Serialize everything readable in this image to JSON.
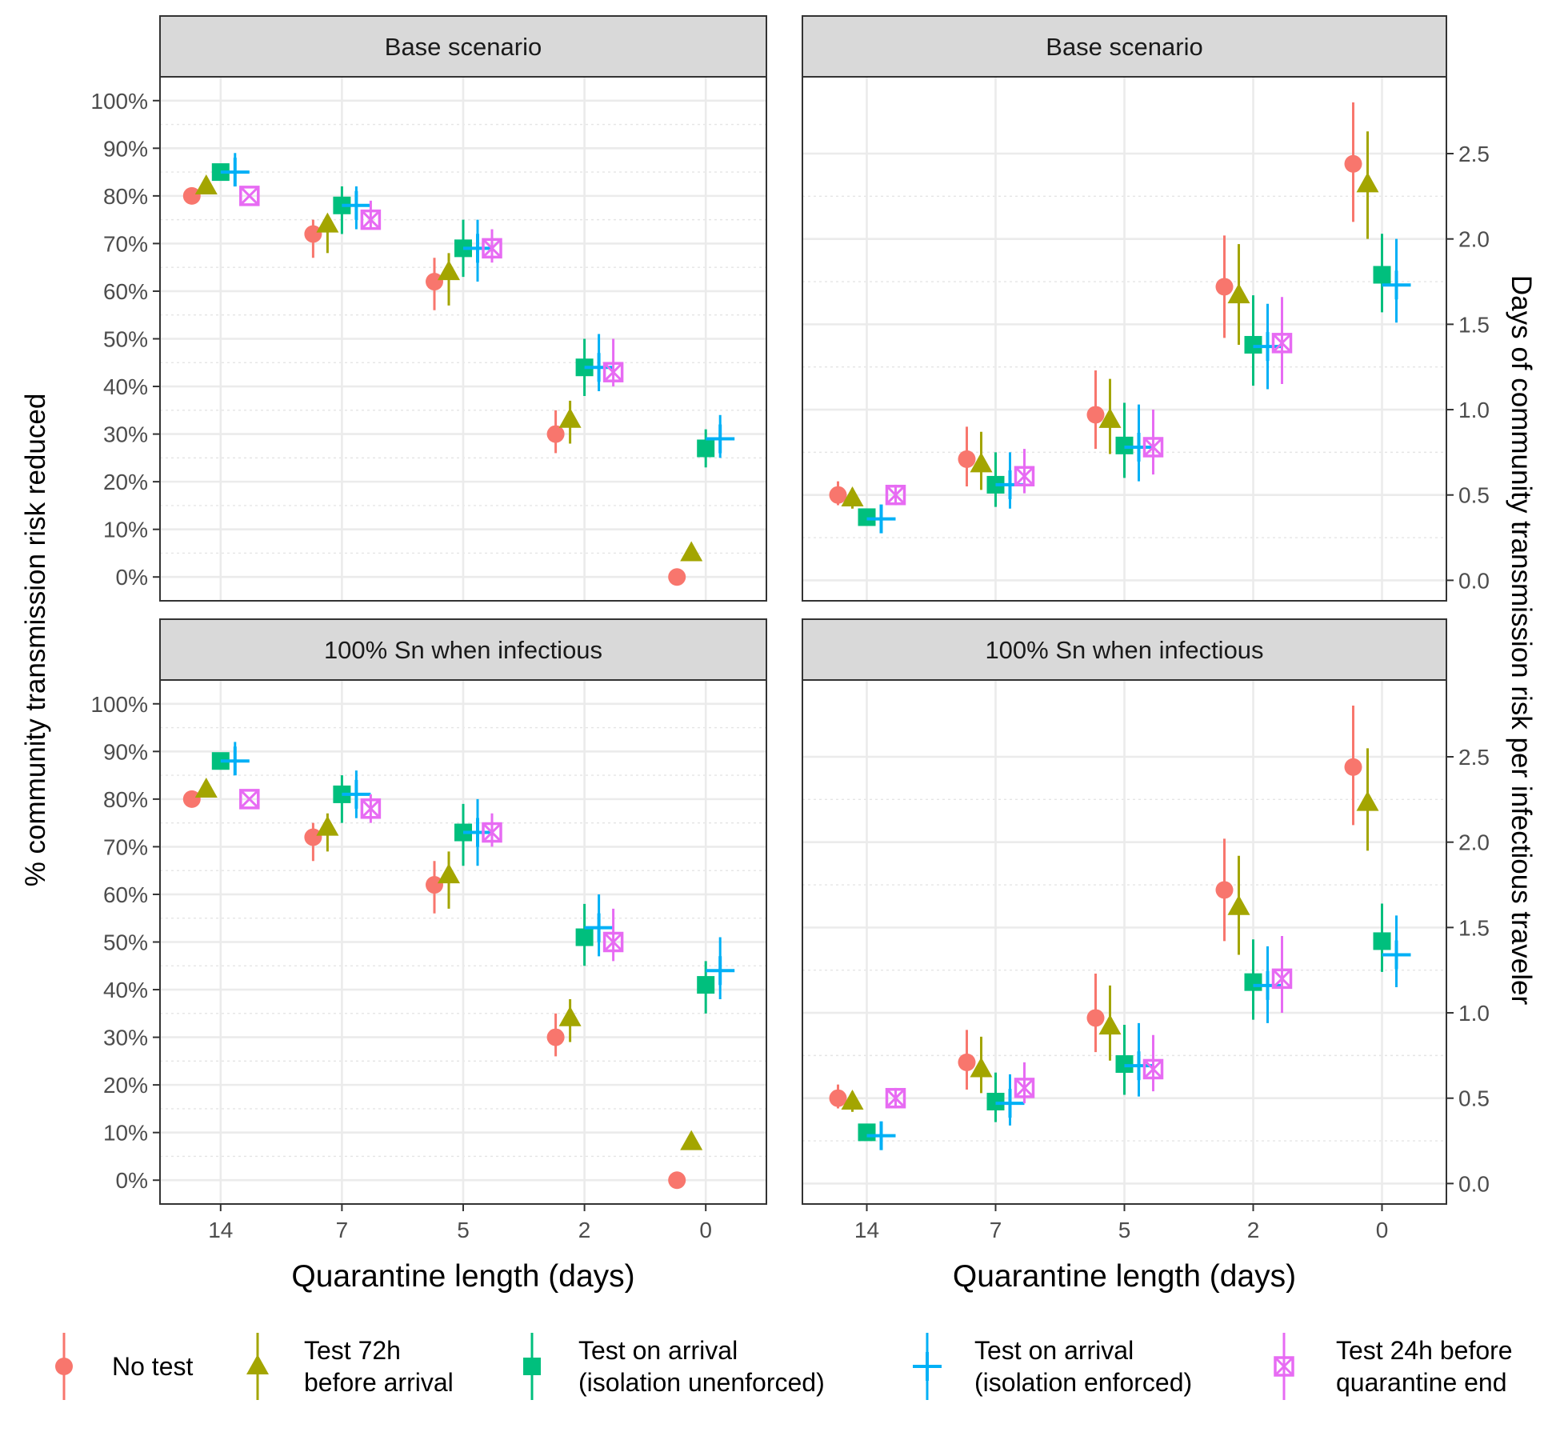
{
  "colors": {
    "no_test": "#F8766D",
    "test_72h": "#A3A500",
    "test_arrival_unenforced": "#00BF7D",
    "test_arrival_enforced": "#00B0F6",
    "test_24h_before_end": "#E76BF3"
  },
  "chart_data": {
    "type": "scatter",
    "x_categories": [
      "14",
      "7",
      "5",
      "2",
      "0"
    ],
    "xlabel": "Quarantine length (days)",
    "ylabel_left": "% community transmission risk reduced",
    "ylabel_right": "Days of community transmission risk per infectious traveler",
    "legend_position": "bottom",
    "legend": [
      {
        "key": "no_test",
        "label1": "No test",
        "label2": "",
        "shape": "circle"
      },
      {
        "key": "test_72h",
        "label1": "Test 72h",
        "label2": "before arrival",
        "shape": "triangle"
      },
      {
        "key": "test_arrival_unenforced",
        "label1": "Test on arrival",
        "label2": "(isolation unenforced)",
        "shape": "square"
      },
      {
        "key": "test_arrival_enforced",
        "label1": "Test on arrival",
        "label2": "(isolation enforced)",
        "shape": "plus"
      },
      {
        "key": "test_24h_before_end",
        "label1": "Test 24h before",
        "label2": "quarantine end",
        "shape": "squarex"
      }
    ],
    "panels": [
      {
        "id": "base-pct",
        "title": "Base scenario",
        "row": 0,
        "col": 0,
        "ylim": [
          -0.05,
          1.05
        ],
        "yticks": [
          0,
          0.1,
          0.2,
          0.3,
          0.4,
          0.5,
          0.6,
          0.7,
          0.8,
          0.9,
          1.0
        ],
        "ytick_labels": [
          "0%",
          "10%",
          "20%",
          "30%",
          "40%",
          "50%",
          "60%",
          "70%",
          "80%",
          "90%",
          "100%"
        ],
        "series": {
          "no_test": [
            [
              0.8,
              0.8,
              0.8
            ],
            [
              0.72,
              0.67,
              0.75
            ],
            [
              0.62,
              0.56,
              0.67
            ],
            [
              0.3,
              0.26,
              0.35
            ],
            [
              0.0,
              0.0,
              0.0
            ]
          ],
          "test_72h": [
            [
              0.82,
              0.82,
              0.82
            ],
            [
              0.74,
              0.68,
              0.76
            ],
            [
              0.64,
              0.57,
              0.68
            ],
            [
              0.33,
              0.28,
              0.37
            ],
            [
              0.05,
              0.05,
              0.05
            ]
          ],
          "test_arrival_unenforced": [
            [
              0.85,
              0.85,
              0.85
            ],
            [
              0.78,
              0.72,
              0.82
            ],
            [
              0.69,
              0.63,
              0.75
            ],
            [
              0.44,
              0.38,
              0.5
            ],
            [
              0.27,
              0.23,
              0.31
            ]
          ],
          "test_arrival_enforced": [
            [
              0.85,
              0.82,
              0.89
            ],
            [
              0.78,
              0.73,
              0.82
            ],
            [
              0.69,
              0.62,
              0.75
            ],
            [
              0.44,
              0.39,
              0.51
            ],
            [
              0.29,
              0.25,
              0.34
            ]
          ],
          "test_24h_before_end": [
            [
              0.8,
              0.8,
              0.8
            ],
            [
              0.75,
              0.73,
              0.79
            ],
            [
              0.69,
              0.66,
              0.73
            ],
            [
              0.43,
              0.4,
              0.5
            ],
            null
          ]
        }
      },
      {
        "id": "base-days",
        "title": "Base scenario",
        "row": 0,
        "col": 1,
        "ylim": [
          -0.12,
          2.95
        ],
        "yticks": [
          0,
          0.5,
          1.0,
          1.5,
          2.0,
          2.5
        ],
        "ytick_labels": [
          "0.0",
          "0.5",
          "1.0",
          "1.5",
          "2.0",
          "2.5"
        ],
        "series": {
          "no_test": [
            [
              0.5,
              0.44,
              0.58
            ],
            [
              0.71,
              0.55,
              0.9
            ],
            [
              0.97,
              0.77,
              1.23
            ],
            [
              1.72,
              1.42,
              2.02
            ],
            [
              2.44,
              2.1,
              2.8
            ]
          ],
          "test_72h": [
            [
              0.48,
              0.42,
              0.54
            ],
            [
              0.68,
              0.53,
              0.87
            ],
            [
              0.94,
              0.74,
              1.18
            ],
            [
              1.67,
              1.38,
              1.97
            ],
            [
              2.32,
              2.0,
              2.63
            ]
          ],
          "test_arrival_unenforced": [
            [
              0.37,
              0.33,
              0.42
            ],
            [
              0.56,
              0.43,
              0.75
            ],
            [
              0.79,
              0.6,
              1.04
            ],
            [
              1.38,
              1.14,
              1.67
            ],
            [
              1.79,
              1.57,
              2.03
            ]
          ],
          "test_arrival_enforced": [
            [
              0.36,
              0.32,
              0.41
            ],
            [
              0.56,
              0.42,
              0.75
            ],
            [
              0.78,
              0.58,
              1.03
            ],
            [
              1.37,
              1.12,
              1.62
            ],
            [
              1.73,
              1.51,
              2.0
            ]
          ],
          "test_24h_before_end": [
            [
              0.5,
              0.44,
              0.56
            ],
            [
              0.61,
              0.51,
              0.77
            ],
            [
              0.78,
              0.62,
              1.0
            ],
            [
              1.39,
              1.15,
              1.66
            ],
            null
          ]
        }
      },
      {
        "id": "sn-pct",
        "title": "100% Sn when infectious",
        "row": 1,
        "col": 0,
        "ylim": [
          -0.05,
          1.05
        ],
        "yticks": [
          0,
          0.1,
          0.2,
          0.3,
          0.4,
          0.5,
          0.6,
          0.7,
          0.8,
          0.9,
          1.0
        ],
        "ytick_labels": [
          "0%",
          "10%",
          "20%",
          "30%",
          "40%",
          "50%",
          "60%",
          "70%",
          "80%",
          "90%",
          "100%"
        ],
        "series": {
          "no_test": [
            [
              0.8,
              0.8,
              0.8
            ],
            [
              0.72,
              0.67,
              0.75
            ],
            [
              0.62,
              0.56,
              0.67
            ],
            [
              0.3,
              0.26,
              0.35
            ],
            [
              0.0,
              0.0,
              0.0
            ]
          ],
          "test_72h": [
            [
              0.82,
              0.82,
              0.82
            ],
            [
              0.74,
              0.69,
              0.77
            ],
            [
              0.64,
              0.57,
              0.69
            ],
            [
              0.34,
              0.29,
              0.38
            ],
            [
              0.08,
              0.08,
              0.08
            ]
          ],
          "test_arrival_unenforced": [
            [
              0.88,
              0.88,
              0.88
            ],
            [
              0.81,
              0.75,
              0.85
            ],
            [
              0.73,
              0.66,
              0.79
            ],
            [
              0.51,
              0.45,
              0.58
            ],
            [
              0.41,
              0.35,
              0.46
            ]
          ],
          "test_arrival_enforced": [
            [
              0.88,
              0.86,
              0.92
            ],
            [
              0.81,
              0.76,
              0.86
            ],
            [
              0.73,
              0.66,
              0.8
            ],
            [
              0.53,
              0.47,
              0.6
            ],
            [
              0.44,
              0.38,
              0.51
            ]
          ],
          "test_24h_before_end": [
            [
              0.8,
              0.8,
              0.8
            ],
            [
              0.78,
              0.75,
              0.81
            ],
            [
              0.73,
              0.7,
              0.77
            ],
            [
              0.5,
              0.46,
              0.57
            ],
            null
          ]
        }
      },
      {
        "id": "sn-days",
        "title": "100% Sn when infectious",
        "row": 1,
        "col": 1,
        "ylim": [
          -0.12,
          2.95
        ],
        "yticks": [
          0,
          0.5,
          1.0,
          1.5,
          2.0,
          2.5
        ],
        "ytick_labels": [
          "0.0",
          "0.5",
          "1.0",
          "1.5",
          "2.0",
          "2.5"
        ],
        "series": {
          "no_test": [
            [
              0.5,
              0.44,
              0.58
            ],
            [
              0.71,
              0.55,
              0.9
            ],
            [
              0.97,
              0.77,
              1.23
            ],
            [
              1.72,
              1.42,
              2.02
            ],
            [
              2.44,
              2.1,
              2.8
            ]
          ],
          "test_72h": [
            [
              0.48,
              0.42,
              0.54
            ],
            [
              0.67,
              0.53,
              0.86
            ],
            [
              0.92,
              0.72,
              1.16
            ],
            [
              1.62,
              1.34,
              1.92
            ],
            [
              2.23,
              1.95,
              2.55
            ]
          ],
          "test_arrival_unenforced": [
            [
              0.3,
              0.27,
              0.34
            ],
            [
              0.48,
              0.36,
              0.65
            ],
            [
              0.7,
              0.52,
              0.93
            ],
            [
              1.18,
              0.96,
              1.43
            ],
            [
              1.42,
              1.24,
              1.64
            ]
          ],
          "test_arrival_enforced": [
            [
              0.28,
              0.25,
              0.32
            ],
            [
              0.47,
              0.34,
              0.64
            ],
            [
              0.69,
              0.51,
              0.94
            ],
            [
              1.16,
              0.94,
              1.39
            ],
            [
              1.34,
              1.15,
              1.57
            ]
          ],
          "test_24h_before_end": [
            [
              0.5,
              0.44,
              0.56
            ],
            [
              0.56,
              0.47,
              0.71
            ],
            [
              0.67,
              0.54,
              0.87
            ],
            [
              1.2,
              1.0,
              1.45
            ],
            null
          ]
        }
      }
    ]
  }
}
